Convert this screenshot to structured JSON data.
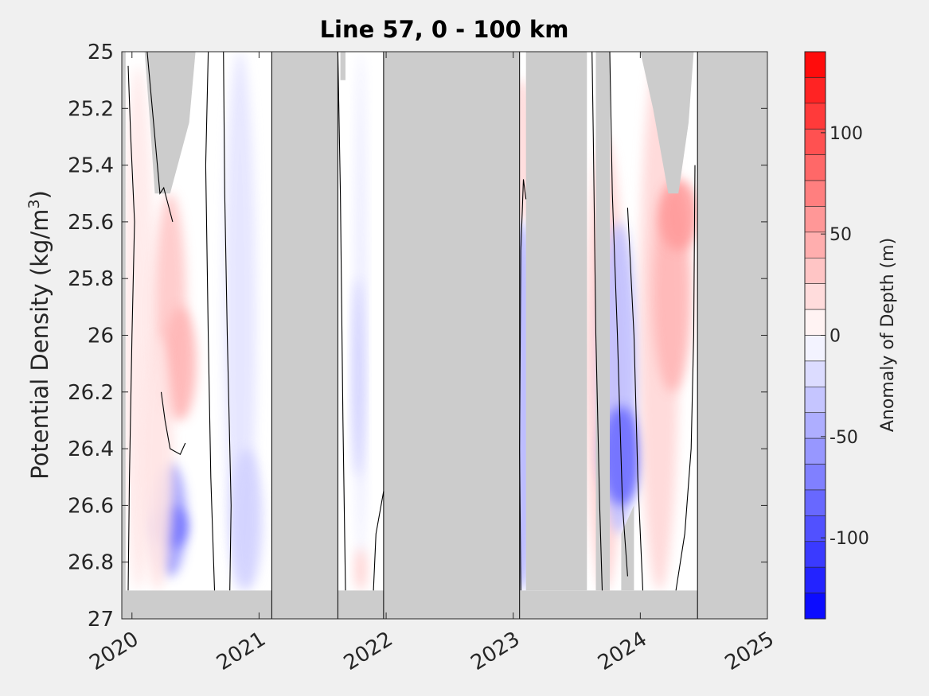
{
  "chart_data": {
    "type": "heatmap",
    "title": "Line 57, 0 - 100 km",
    "xlabel": "",
    "ylabel": "Potential Density (kg/m",
    "ylabel_sup": "3",
    "ylabel_close": ")",
    "x_ticks": [
      "2020",
      "2021",
      "2022",
      "2023",
      "2024",
      "2025"
    ],
    "xlim": [
      2019.92,
      2025.0
    ],
    "y_ticks": [
      "25",
      "25.2",
      "25.4",
      "25.6",
      "25.8",
      "26",
      "26.2",
      "26.4",
      "26.6",
      "26.8",
      "27"
    ],
    "ylim": [
      25.0,
      27.0
    ],
    "y_reversed": true,
    "colorbar": {
      "label": "Anomaly of Depth (m)",
      "ticks": [
        "100",
        "50",
        "0",
        "-50",
        "-100"
      ],
      "range": [
        -140,
        140
      ],
      "levels": 22
    },
    "nodata_color": "#cccccc",
    "colormap": [
      "#0000ff",
      "#ffffff",
      "#ff0000"
    ],
    "data_segments": [
      {
        "x_start": 2019.95,
        "x_end": 2021.1,
        "patches": [
          {
            "x": 2020.05,
            "y0": 25.05,
            "y1": 26.9,
            "value": 12
          },
          {
            "x": 2020.3,
            "y0": 25.5,
            "y1": 26.3,
            "value": 30
          },
          {
            "x": 2020.38,
            "y0": 25.9,
            "y1": 26.3,
            "value": 40
          },
          {
            "x": 2020.3,
            "y0": 26.45,
            "y1": 26.85,
            "value": -55
          },
          {
            "x": 2020.31,
            "y0": 26.6,
            "y1": 26.75,
            "value": -75
          },
          {
            "x": 2020.2,
            "y0": 26.0,
            "y1": 26.9,
            "value": 15
          },
          {
            "x": 2020.85,
            "y0": 25.0,
            "y1": 26.9,
            "value": -15
          },
          {
            "x": 2020.9,
            "y0": 26.4,
            "y1": 26.9,
            "value": -25
          }
        ]
      },
      {
        "x_start": 2021.62,
        "x_end": 2021.98,
        "patches": [
          {
            "x": 2021.8,
            "y0": 25.0,
            "y1": 26.8,
            "value": -12
          },
          {
            "x": 2021.78,
            "y0": 25.8,
            "y1": 26.5,
            "value": -28
          },
          {
            "x": 2021.8,
            "y0": 26.75,
            "y1": 26.9,
            "value": 28
          }
        ]
      },
      {
        "x_start": 2023.05,
        "x_end": 2024.45,
        "patches": [
          {
            "x": 2023.06,
            "y0": 25.1,
            "y1": 25.6,
            "value": 20
          },
          {
            "x": 2023.06,
            "y0": 25.6,
            "y1": 26.9,
            "value": -40
          },
          {
            "x": 2023.72,
            "y0": 25.3,
            "y1": 26.9,
            "value": 25
          },
          {
            "x": 2023.83,
            "y0": 25.6,
            "y1": 26.7,
            "value": -35
          },
          {
            "x": 2023.85,
            "y0": 26.25,
            "y1": 26.6,
            "value": -80
          },
          {
            "x": 2024.15,
            "y0": 25.0,
            "y1": 26.9,
            "value": 22
          },
          {
            "x": 2024.25,
            "y0": 25.5,
            "y1": 26.2,
            "value": 40
          },
          {
            "x": 2024.3,
            "y0": 25.45,
            "y1": 25.7,
            "value": 55
          }
        ]
      }
    ],
    "gaps": [
      [
        2021.1,
        2021.62
      ],
      [
        2021.98,
        2023.05
      ],
      [
        2024.45,
        2025.0
      ]
    ]
  }
}
